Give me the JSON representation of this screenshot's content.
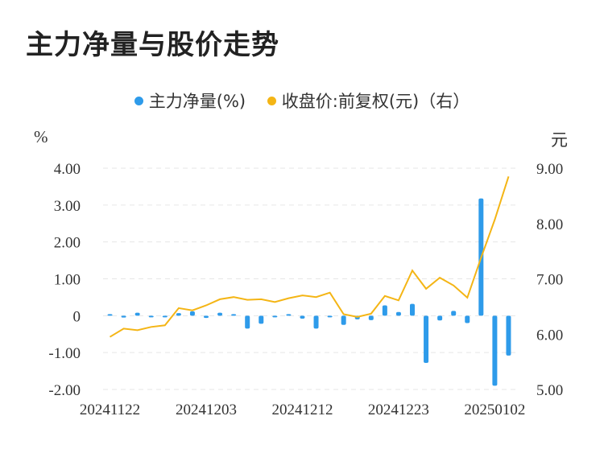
{
  "title": "主力净量与股价走势",
  "legend": {
    "series1": "主力净量(%)",
    "series2": "收盘价:前复权(元)（右）"
  },
  "units": {
    "left": "%",
    "right": "元"
  },
  "colors": {
    "bar": "#2E9BEA",
    "line": "#F4B515",
    "grid": "#E6E6E6",
    "text": "#333333"
  },
  "chart_data": {
    "type": "bar+line",
    "left_axis": {
      "min": -2,
      "max": 4,
      "ticks": [
        "4.00",
        "3.00",
        "2.00",
        "1.00",
        "0",
        "-1.00",
        "-2.00"
      ],
      "tick_values": [
        4,
        3,
        2,
        1,
        0,
        -1,
        -2
      ]
    },
    "right_axis": {
      "min": 5,
      "max": 9,
      "ticks": [
        "9.00",
        "8.00",
        "7.00",
        "6.00",
        "5.00"
      ],
      "tick_values": [
        9,
        8,
        7,
        6,
        5
      ]
    },
    "x_labels": [
      "20241122",
      "20241203",
      "20241212",
      "20241223",
      "20250102"
    ],
    "x_label_index": [
      0,
      7,
      14,
      21,
      28
    ],
    "series": [
      {
        "name": "主力净量(%)",
        "axis": "left",
        "type": "bar",
        "values": [
          0.02,
          -0.05,
          0.08,
          -0.03,
          -0.02,
          0.07,
          0.12,
          -0.06,
          0.08,
          0.03,
          -0.35,
          -0.22,
          -0.04,
          0.04,
          -0.08,
          -0.35,
          -0.04,
          -0.25,
          -0.1,
          -0.12,
          0.28,
          0.1,
          0.32,
          -1.28,
          -0.13,
          0.13,
          -0.2,
          3.18,
          -1.9,
          -1.08
        ]
      },
      {
        "name": "收盘价:前复权(元)（右）",
        "axis": "right",
        "type": "line",
        "values": [
          5.95,
          6.1,
          6.07,
          6.13,
          6.16,
          6.47,
          6.43,
          6.52,
          6.63,
          6.67,
          6.62,
          6.63,
          6.58,
          6.65,
          6.7,
          6.67,
          6.75,
          6.36,
          6.31,
          6.37,
          6.69,
          6.61,
          7.15,
          6.82,
          7.02,
          6.88,
          6.66,
          7.38,
          8.07,
          8.85
        ]
      }
    ]
  }
}
